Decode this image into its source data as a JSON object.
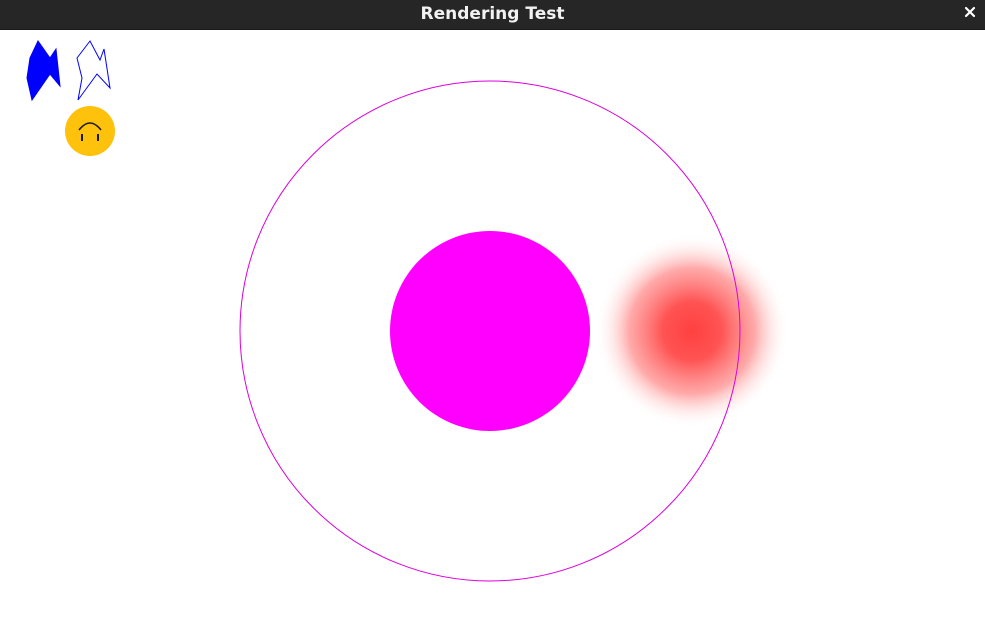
{
  "window": {
    "title": "Rendering Test",
    "close_icon": "close-icon"
  },
  "scene": {
    "shapes": [
      {
        "kind": "filled-polygon",
        "color": "#0000ff"
      },
      {
        "kind": "outlined-polygon",
        "color": "#0000ff"
      },
      {
        "kind": "smiley-face",
        "color": "#fec10c",
        "icon": "upside-down-smiley-icon"
      },
      {
        "kind": "outlined-circle",
        "color": "#dd00dd"
      },
      {
        "kind": "filled-circle",
        "color": "#ff00ff"
      },
      {
        "kind": "radial-gradient-circle",
        "color": "#ff4040"
      }
    ]
  }
}
